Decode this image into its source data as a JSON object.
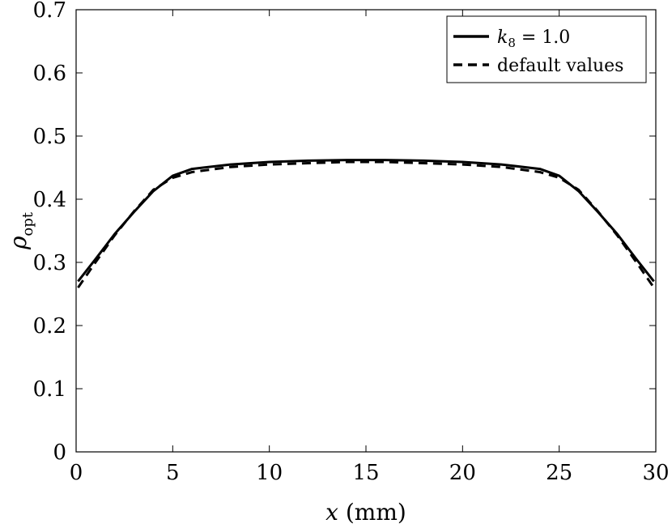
{
  "chart_data": {
    "type": "line",
    "xlabel": "x (mm)",
    "ylabel": "ρopt",
    "xlim": [
      0,
      30
    ],
    "ylim": [
      0,
      0.7
    ],
    "xticks": [
      0,
      5,
      10,
      15,
      20,
      25,
      30
    ],
    "yticks": [
      0,
      0.1,
      0.2,
      0.3,
      0.4,
      0.5,
      0.6,
      0.7
    ],
    "xtick_labels": [
      "0",
      "5",
      "10",
      "15",
      "20",
      "25",
      "30"
    ],
    "ytick_labels": [
      "0",
      "0.1",
      "0.2",
      "0.3",
      "0.4",
      "0.5",
      "0.6",
      "0.7"
    ],
    "grid": false,
    "legend_position": "top-right",
    "series": [
      {
        "name": "k8 = 1.0",
        "style": "solid",
        "color": "#000000",
        "x": [
          0.1,
          1,
          2,
          3,
          4,
          5,
          6,
          8,
          10,
          12,
          14,
          15,
          16,
          18,
          20,
          22,
          24,
          25,
          26,
          27,
          28,
          29,
          29.9
        ],
        "y": [
          0.27,
          0.305,
          0.345,
          0.38,
          0.413,
          0.437,
          0.448,
          0.455,
          0.459,
          0.461,
          0.462,
          0.462,
          0.462,
          0.461,
          0.459,
          0.455,
          0.448,
          0.437,
          0.413,
          0.38,
          0.345,
          0.305,
          0.27
        ]
      },
      {
        "name": "default values",
        "style": "dashed",
        "color": "#000000",
        "x": [
          0.1,
          1,
          2,
          3,
          4,
          5,
          6,
          8,
          10,
          12,
          14,
          15,
          16,
          18,
          20,
          22,
          24,
          25,
          26,
          27,
          28,
          29,
          29.9
        ],
        "y": [
          0.26,
          0.3,
          0.343,
          0.381,
          0.415,
          0.434,
          0.443,
          0.451,
          0.455,
          0.457,
          0.459,
          0.459,
          0.459,
          0.457,
          0.455,
          0.451,
          0.443,
          0.434,
          0.415,
          0.381,
          0.343,
          0.3,
          0.26
        ]
      }
    ],
    "legend": {
      "entries": [
        {
          "label_main": "k",
          "label_sub": "8",
          "label_rest": " = 1.0"
        },
        {
          "label_main": "default values",
          "label_sub": "",
          "label_rest": ""
        }
      ]
    }
  }
}
